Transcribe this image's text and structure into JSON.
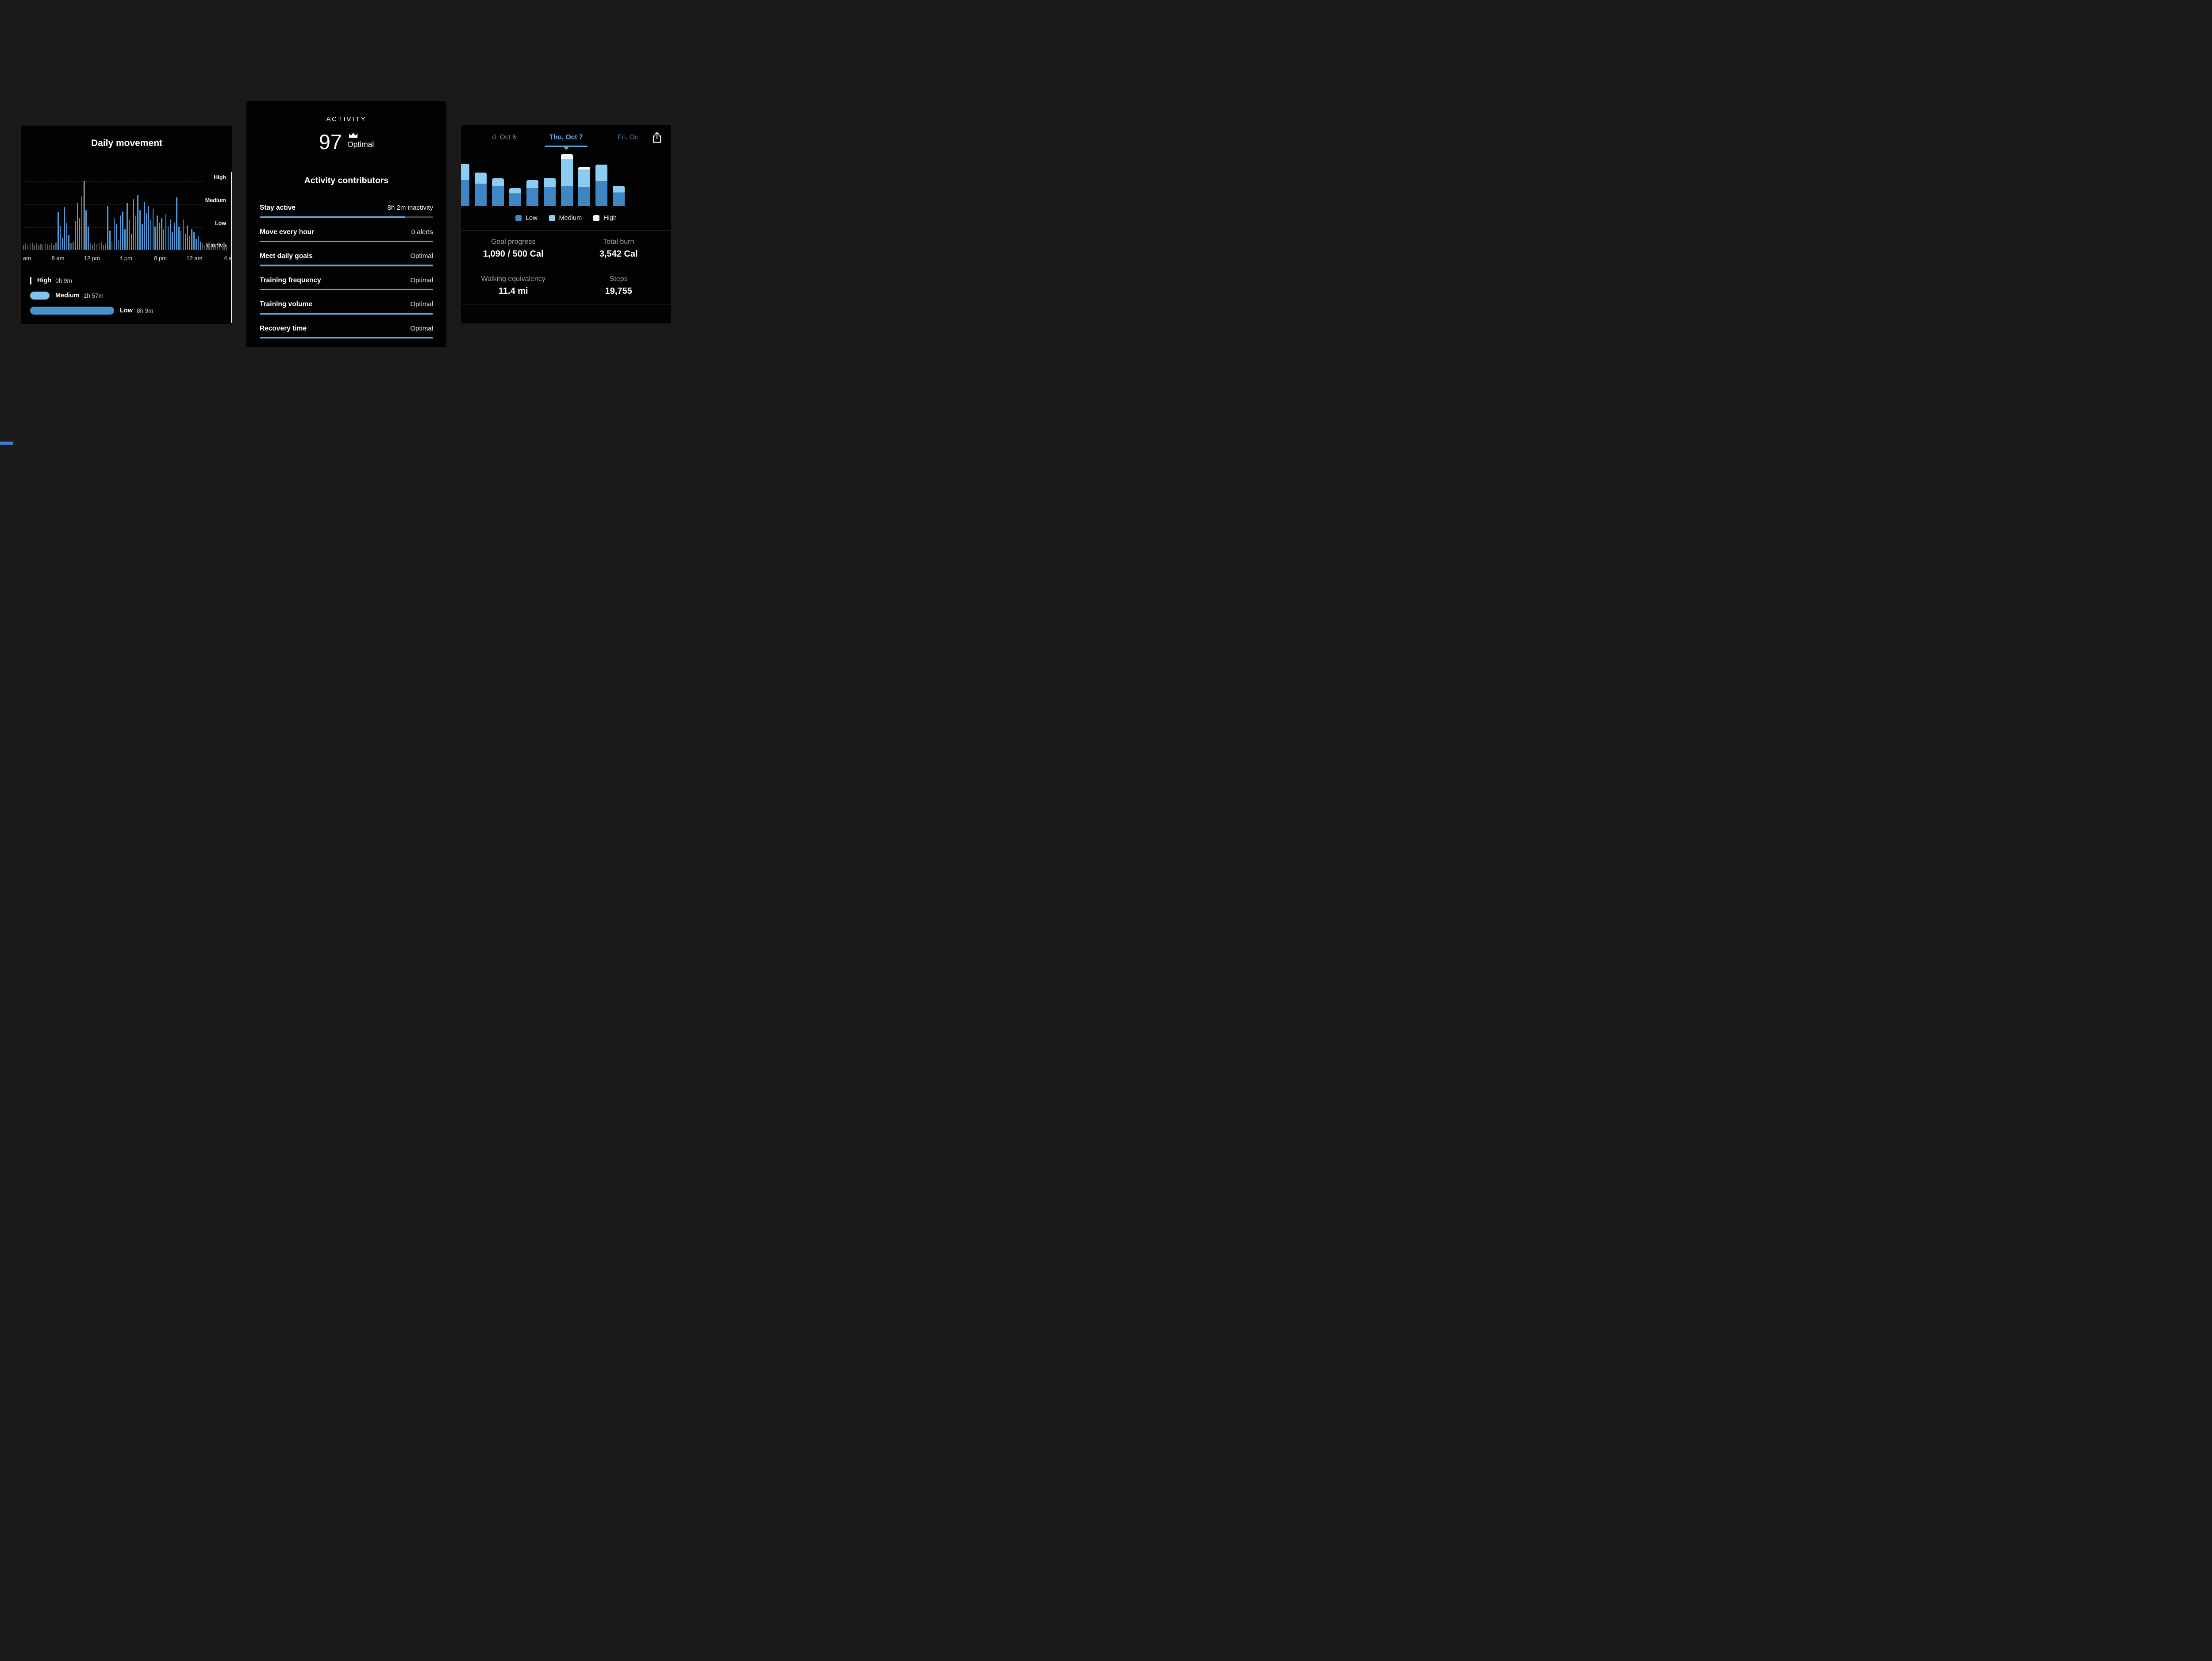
{
  "daily_movement": {
    "title": "Daily movement",
    "y_labels": [
      "High",
      "Medium",
      "Low",
      "Inactive"
    ],
    "x_labels": [
      "am",
      "8 am",
      "12 pm",
      "4 pm",
      "8 pm",
      "12 am",
      "4 a"
    ],
    "legend": [
      {
        "key": "high",
        "label": "High",
        "value": "0h 9m"
      },
      {
        "key": "medium",
        "label": "Medium",
        "value": "1h 57m"
      },
      {
        "key": "low",
        "label": "Low",
        "value": "8h 9m"
      }
    ],
    "colors": {
      "blue": "#4e9ad8",
      "gray": "#595d60",
      "white": "#ffffff"
    },
    "chart_data": {
      "type": "bar",
      "title": "Daily movement",
      "x_axis": "time of day (4 am through 4 am next day)",
      "y_levels": [
        "Inactive",
        "Low",
        "Medium",
        "High"
      ],
      "bar_unit": "percent of High gridline, color g=inactive/low gray, b=active blue, w=highlight white",
      "bars": [
        [
          8,
          "g"
        ],
        [
          10,
          "g"
        ],
        [
          7,
          "g"
        ],
        [
          9,
          "g"
        ],
        [
          11,
          "g"
        ],
        [
          8,
          "g"
        ],
        [
          10,
          "g"
        ],
        [
          7,
          "g"
        ],
        [
          9,
          "g"
        ],
        [
          8,
          "g"
        ],
        [
          10,
          "g"
        ],
        [
          9,
          "g"
        ],
        [
          7,
          "g"
        ],
        [
          10,
          "g"
        ],
        [
          8,
          "g"
        ],
        [
          11,
          "g"
        ],
        [
          55,
          "b"
        ],
        [
          35,
          "b"
        ],
        [
          18,
          "b"
        ],
        [
          62,
          "b"
        ],
        [
          40,
          "b"
        ],
        [
          22,
          "b"
        ],
        [
          10,
          "g"
        ],
        [
          12,
          "g"
        ],
        [
          42,
          "b"
        ],
        [
          68,
          "b"
        ],
        [
          46,
          "b"
        ],
        [
          78,
          "b"
        ],
        [
          100,
          "w"
        ],
        [
          58,
          "b"
        ],
        [
          34,
          "b"
        ],
        [
          10,
          "g"
        ],
        [
          8,
          "g"
        ],
        [
          11,
          "g"
        ],
        [
          9,
          "g"
        ],
        [
          10,
          "g"
        ],
        [
          12,
          "g"
        ],
        [
          8,
          "g"
        ],
        [
          10,
          "g"
        ],
        [
          64,
          "b"
        ],
        [
          28,
          "b"
        ],
        [
          12,
          "g"
        ],
        [
          46,
          "b"
        ],
        [
          38,
          "b"
        ],
        [
          14,
          "g"
        ],
        [
          50,
          "b"
        ],
        [
          56,
          "b"
        ],
        [
          30,
          "b"
        ],
        [
          68,
          "b"
        ],
        [
          44,
          "b"
        ],
        [
          24,
          "b"
        ],
        [
          74,
          "b"
        ],
        [
          50,
          "b"
        ],
        [
          80,
          "b"
        ],
        [
          58,
          "b"
        ],
        [
          38,
          "b"
        ],
        [
          70,
          "b"
        ],
        [
          54,
          "b"
        ],
        [
          64,
          "b"
        ],
        [
          44,
          "b"
        ],
        [
          60,
          "b"
        ],
        [
          34,
          "b"
        ],
        [
          50,
          "b"
        ],
        [
          40,
          "b"
        ],
        [
          46,
          "b"
        ],
        [
          30,
          "b"
        ],
        [
          52,
          "b"
        ],
        [
          34,
          "b"
        ],
        [
          44,
          "b"
        ],
        [
          26,
          "b"
        ],
        [
          40,
          "b"
        ],
        [
          76,
          "b"
        ],
        [
          34,
          "b"
        ],
        [
          28,
          "b"
        ],
        [
          44,
          "b"
        ],
        [
          24,
          "b"
        ],
        [
          36,
          "b"
        ],
        [
          20,
          "b"
        ],
        [
          30,
          "b"
        ],
        [
          26,
          "b"
        ],
        [
          16,
          "b"
        ],
        [
          20,
          "b"
        ],
        [
          12,
          "b"
        ],
        [
          10,
          "g"
        ],
        [
          8,
          "g"
        ],
        [
          9,
          "g"
        ],
        [
          11,
          "g"
        ],
        [
          8,
          "g"
        ],
        [
          10,
          "g"
        ],
        [
          9,
          "g"
        ],
        [
          8,
          "g"
        ],
        [
          10,
          "g"
        ],
        [
          9,
          "g"
        ],
        [
          11,
          "g"
        ],
        [
          8,
          "g"
        ]
      ]
    }
  },
  "activity": {
    "header": "ACTIVITY",
    "score": "97",
    "score_status": "Optimal",
    "crown_icon": "crown-icon",
    "contributors_title": "Activity contributors",
    "accent_color": "#5fa8e0",
    "contributors": [
      {
        "label": "Stay active",
        "value": "8h 2m inactivity",
        "progress": 84
      },
      {
        "label": "Move every hour",
        "value": "0 alerts",
        "progress": 100
      },
      {
        "label": "Meet daily goals",
        "value": "Optimal",
        "progress": 100
      },
      {
        "label": "Training frequency",
        "value": "Optimal",
        "progress": 100
      },
      {
        "label": "Training volume",
        "value": "Optimal",
        "progress": 100
      },
      {
        "label": "Recovery time",
        "value": "Optimal",
        "progress": 100
      }
    ]
  },
  "weekly": {
    "tabs": [
      {
        "label": "d, Oct 6",
        "selected": false
      },
      {
        "label": "Thu, Oct 7",
        "selected": true
      },
      {
        "label": "Fri, Oc",
        "selected": false
      }
    ],
    "share_icon": "share-icon",
    "legend": [
      {
        "key": "low",
        "label": "Low"
      },
      {
        "key": "medium",
        "label": "Medium"
      },
      {
        "key": "high",
        "label": "High"
      }
    ],
    "colors": {
      "low": "#4186c4",
      "medium": "#8ecdf2",
      "high": "#f3f7fa",
      "accent": "#5ea9e0"
    },
    "chart_data": {
      "type": "stacked-bar",
      "segment_order": [
        "low",
        "medium",
        "high"
      ],
      "bar_unit": "relative activity height (no numeric axis shown)",
      "selected_bar_index": 6,
      "bars": [
        [
          58,
          37,
          0
        ],
        [
          50,
          25,
          0
        ],
        [
          44,
          18,
          0
        ],
        [
          28,
          12,
          0
        ],
        [
          40,
          18,
          0
        ],
        [
          42,
          21,
          0
        ],
        [
          45,
          60,
          12
        ],
        [
          42,
          40,
          6
        ],
        [
          56,
          37,
          0
        ],
        [
          30,
          15,
          0
        ]
      ]
    },
    "stats": [
      {
        "label": "Goal progress",
        "value": "1,090 / 500 Cal"
      },
      {
        "label": "Total burn",
        "value": "3,542 Cal"
      },
      {
        "label": "Walking equivalency",
        "value": "11.4 mi"
      },
      {
        "label": "Steps",
        "value": "19,755"
      }
    ]
  }
}
